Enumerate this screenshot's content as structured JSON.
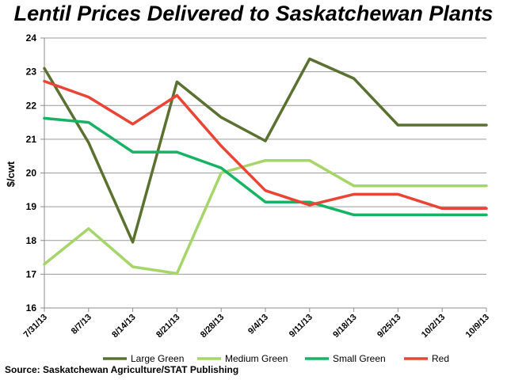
{
  "chart_data": {
    "type": "line",
    "title": "Lentil Prices Delivered to Saskatchewan Plants",
    "xlabel": "",
    "ylabel": "$/cwt",
    "ylim": [
      16,
      24
    ],
    "yticks": [
      "16",
      "17",
      "18",
      "19",
      "20",
      "21",
      "22",
      "23",
      "24"
    ],
    "grid": true,
    "legend_position": "bottom",
    "categories": [
      "7/31/13",
      "8/7/13",
      "8/14/13",
      "8/21/13",
      "8/28/13",
      "9/4/13",
      "9/11/13",
      "9/18/13",
      "9/25/13",
      "10/2/13",
      "10/9/13"
    ],
    "series": [
      {
        "name": "Large Green",
        "color": "#5a7130",
        "values": [
          23.1,
          20.9,
          17.95,
          22.7,
          21.65,
          20.95,
          23.38,
          22.8,
          21.42,
          21.42,
          21.42
        ]
      },
      {
        "name": "Medium Green",
        "color": "#a6d66a",
        "values": [
          17.3,
          18.35,
          17.22,
          17.02,
          20.0,
          20.37,
          20.37,
          19.62,
          19.62,
          19.62,
          19.62
        ]
      },
      {
        "name": "Small Green",
        "color": "#15b363",
        "values": [
          21.62,
          21.5,
          20.62,
          20.62,
          20.15,
          19.14,
          19.14,
          18.76,
          18.76,
          18.76,
          18.76
        ]
      },
      {
        "name": "Red",
        "color": "#ea4435",
        "values": [
          22.72,
          22.25,
          21.45,
          22.3,
          20.8,
          19.48,
          19.05,
          19.37,
          19.37,
          18.95,
          18.95
        ]
      }
    ]
  },
  "source": "Source: Saskatchewan Agriculture/STAT Publishing"
}
